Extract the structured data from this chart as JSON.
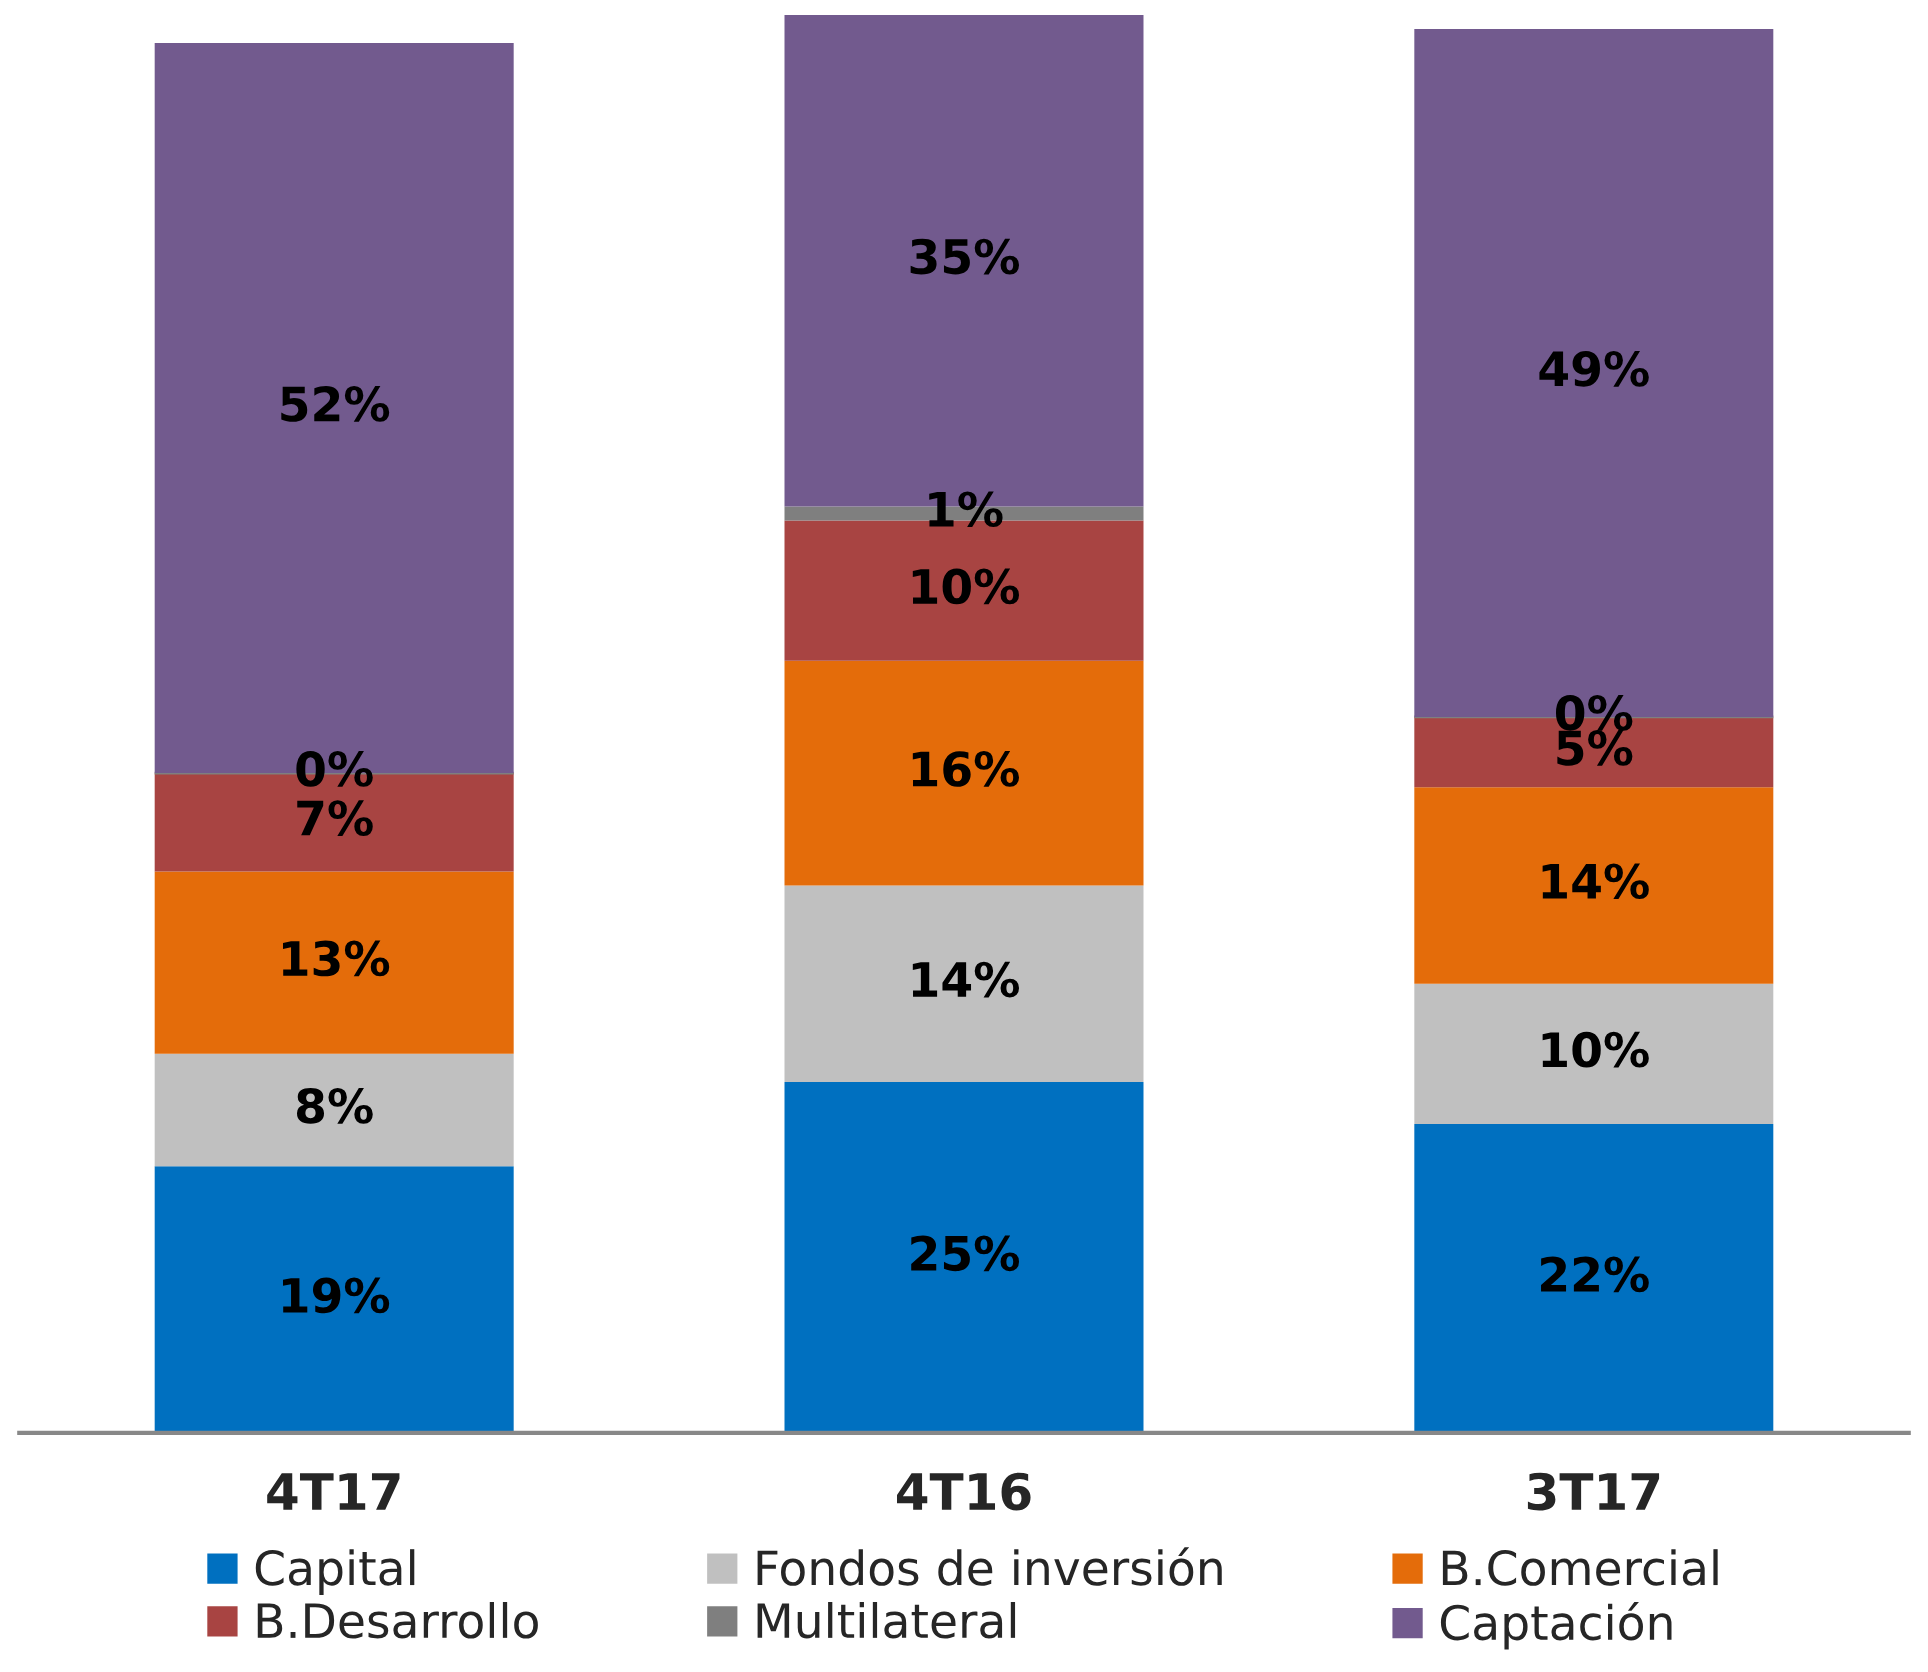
{
  "chart_data": {
    "type": "bar",
    "stacked": true,
    "categories": [
      "4T17",
      "4T16",
      "3T17"
    ],
    "series": [
      {
        "name": "Capital",
        "color": "#0070c0",
        "values": [
          19,
          25,
          22
        ],
        "value_labels": [
          "19%",
          "25%",
          "22%"
        ]
      },
      {
        "name": "Fondos de inversión",
        "color": "#c0c0c0",
        "values": [
          8,
          14,
          10
        ],
        "value_labels": [
          "8%",
          "14%",
          "10%"
        ]
      },
      {
        "name": "B.Comercial",
        "color": "#e46c0a",
        "values": [
          13,
          16,
          14
        ],
        "value_labels": [
          "13%",
          "16%",
          "14%"
        ]
      },
      {
        "name": "B.Desarrollo",
        "color": "#a84442",
        "values": [
          7,
          10,
          5
        ],
        "value_labels": [
          "7%",
          "10%",
          "5%"
        ]
      },
      {
        "name": "Multilateral",
        "color": "#7f7f7f",
        "values": [
          0,
          1,
          0
        ],
        "value_labels": [
          "0%",
          "1%",
          "0%"
        ]
      },
      {
        "name": "Captación",
        "color": "#725a8e",
        "values": [
          52,
          35,
          49
        ],
        "value_labels": [
          "52%",
          "35%",
          "49%"
        ]
      }
    ],
    "legend": "bottom",
    "grid": false
  }
}
